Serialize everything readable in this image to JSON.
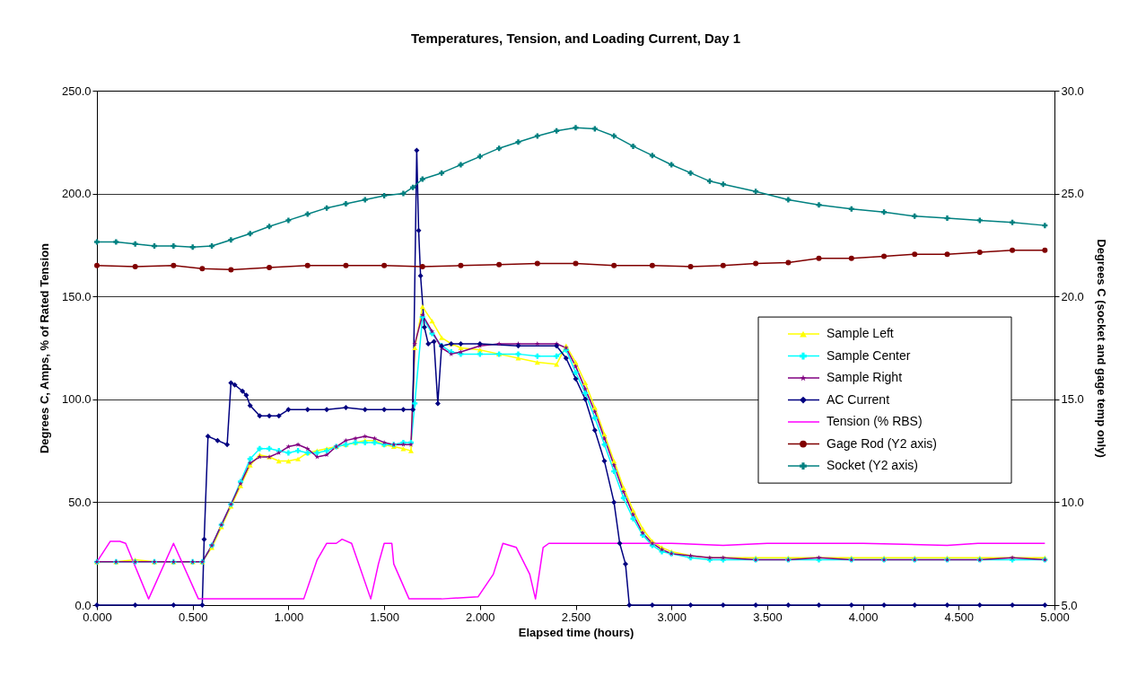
{
  "chart_data": {
    "type": "line",
    "title": "Temperatures, Tension, and Loading Current, Day 1",
    "xlabel": "Elapsed time (hours)",
    "ylabel": "Degrees C, Amps, % of Rated Tension",
    "y2label": "Degrees C (socket and gage temp only)",
    "xlim": [
      0,
      5
    ],
    "xticks": [
      {
        "value": 0,
        "label": "0.000"
      },
      {
        "value": 0.5,
        "label": "0.500"
      },
      {
        "value": 1,
        "label": "1.000"
      },
      {
        "value": 1.5,
        "label": "1.500"
      },
      {
        "value": 2,
        "label": "2.000"
      },
      {
        "value": 2.5,
        "label": "2.500"
      },
      {
        "value": 3,
        "label": "3.000"
      },
      {
        "value": 3.5,
        "label": "3.500"
      },
      {
        "value": 4,
        "label": "4.000"
      },
      {
        "value": 4.5,
        "label": "4.500"
      },
      {
        "value": 5,
        "label": "5.000"
      }
    ],
    "ylim": [
      0,
      250
    ],
    "yticks": [
      {
        "value": 0,
        "label": "0.0"
      },
      {
        "value": 50,
        "label": "50.0"
      },
      {
        "value": 100,
        "label": "100.0"
      },
      {
        "value": 150,
        "label": "150.0"
      },
      {
        "value": 200,
        "label": "200.0"
      },
      {
        "value": 250,
        "label": "250.0"
      }
    ],
    "y2lim": [
      5,
      30
    ],
    "y2ticks": [
      {
        "value": 5,
        "label": "5.0"
      },
      {
        "value": 10,
        "label": "10.0"
      },
      {
        "value": 15,
        "label": "15.0"
      },
      {
        "value": 20,
        "label": "20.0"
      },
      {
        "value": 25,
        "label": "25.0"
      },
      {
        "value": 30,
        "label": "30.0"
      }
    ],
    "grid": "y",
    "legend": "right",
    "series": [
      {
        "name": "Sample Left",
        "color": "#ffff00",
        "marker": "triangle",
        "x": [
          0,
          0.1,
          0.2,
          0.3,
          0.4,
          0.5,
          0.55,
          0.6,
          0.65,
          0.7,
          0.75,
          0.8,
          0.85,
          0.9,
          0.95,
          1.0,
          1.05,
          1.1,
          1.15,
          1.2,
          1.25,
          1.3,
          1.35,
          1.4,
          1.45,
          1.5,
          1.55,
          1.6,
          1.64,
          1.66,
          1.7,
          1.75,
          1.8,
          1.85,
          1.9,
          2.0,
          2.1,
          2.2,
          2.3,
          2.4,
          2.45,
          2.5,
          2.55,
          2.6,
          2.65,
          2.7,
          2.75,
          2.8,
          2.85,
          2.9,
          2.95,
          3.0,
          3.1,
          3.2,
          3.27,
          3.44,
          3.61,
          3.77,
          3.94,
          4.11,
          4.27,
          4.44,
          4.61,
          4.78,
          4.95
        ],
        "values": [
          21,
          21,
          22,
          21,
          21,
          21,
          21,
          28,
          38,
          48,
          58,
          68,
          73,
          72,
          70,
          70,
          71,
          74,
          75,
          76,
          77,
          78,
          79,
          80,
          80,
          78,
          77,
          76,
          75,
          125,
          145,
          138,
          130,
          127,
          125,
          124,
          122,
          120,
          118,
          117,
          126,
          118,
          108,
          96,
          83,
          70,
          57,
          46,
          37,
          31,
          28,
          26,
          24,
          23,
          23,
          23,
          23,
          23,
          23,
          23,
          23,
          23,
          23,
          23,
          23
        ]
      },
      {
        "name": "Sample Center",
        "color": "#00ffff",
        "marker": "cross",
        "x": [
          0,
          0.1,
          0.2,
          0.3,
          0.4,
          0.5,
          0.55,
          0.6,
          0.65,
          0.7,
          0.75,
          0.8,
          0.85,
          0.9,
          0.95,
          1.0,
          1.05,
          1.1,
          1.15,
          1.2,
          1.25,
          1.3,
          1.35,
          1.4,
          1.45,
          1.5,
          1.55,
          1.6,
          1.64,
          1.66,
          1.7,
          1.75,
          1.8,
          1.85,
          1.9,
          2.0,
          2.1,
          2.2,
          2.3,
          2.4,
          2.45,
          2.5,
          2.55,
          2.6,
          2.65,
          2.7,
          2.75,
          2.8,
          2.85,
          2.9,
          2.95,
          3.0,
          3.1,
          3.2,
          3.27,
          3.44,
          3.61,
          3.77,
          3.94,
          4.11,
          4.27,
          4.44,
          4.61,
          4.78,
          4.95
        ],
        "values": [
          21,
          21,
          21,
          21,
          21,
          21,
          21,
          29,
          39,
          49,
          60,
          71,
          76,
          76,
          75,
          74,
          75,
          74,
          74,
          75,
          77,
          78,
          79,
          79,
          79,
          78,
          78,
          79,
          79,
          98,
          140,
          132,
          126,
          123,
          122,
          122,
          122,
          122,
          121,
          121,
          124,
          113,
          103,
          91,
          78,
          65,
          52,
          42,
          34,
          29,
          26,
          25,
          23,
          22,
          22,
          22,
          22,
          22,
          22,
          22,
          22,
          22,
          22,
          22,
          22
        ]
      },
      {
        "name": "Sample Right",
        "color": "#800080",
        "marker": "star",
        "x": [
          0,
          0.1,
          0.2,
          0.3,
          0.4,
          0.5,
          0.55,
          0.6,
          0.65,
          0.7,
          0.75,
          0.8,
          0.85,
          0.9,
          0.95,
          1.0,
          1.05,
          1.1,
          1.15,
          1.2,
          1.25,
          1.3,
          1.35,
          1.4,
          1.45,
          1.5,
          1.55,
          1.6,
          1.64,
          1.66,
          1.7,
          1.75,
          1.8,
          1.85,
          1.9,
          2.0,
          2.1,
          2.2,
          2.3,
          2.4,
          2.45,
          2.5,
          2.55,
          2.6,
          2.65,
          2.7,
          2.75,
          2.8,
          2.85,
          2.9,
          2.95,
          3.0,
          3.1,
          3.2,
          3.27,
          3.44,
          3.61,
          3.77,
          3.94,
          4.11,
          4.27,
          4.44,
          4.61,
          4.78,
          4.95
        ],
        "values": [
          21,
          21,
          21,
          21,
          21,
          21,
          21,
          29,
          39,
          49,
          59,
          69,
          72,
          72,
          74,
          77,
          78,
          76,
          72,
          73,
          77,
          80,
          81,
          82,
          81,
          79,
          78,
          78,
          78,
          127,
          141,
          133,
          125,
          122,
          123,
          126,
          127,
          127,
          127,
          127,
          125,
          116,
          105,
          94,
          81,
          68,
          55,
          44,
          35,
          30,
          27,
          25,
          24,
          23,
          23,
          22,
          22,
          23,
          22,
          22,
          22,
          22,
          22,
          23,
          22
        ]
      },
      {
        "name": "AC Current",
        "color": "#000080",
        "marker": "diamond",
        "x": [
          0,
          0.2,
          0.4,
          0.55,
          0.56,
          0.58,
          0.63,
          0.68,
          0.7,
          0.72,
          0.76,
          0.78,
          0.8,
          0.85,
          0.9,
          0.95,
          1.0,
          1.1,
          1.2,
          1.3,
          1.4,
          1.5,
          1.6,
          1.65,
          1.67,
          1.68,
          1.69,
          1.71,
          1.73,
          1.76,
          1.78,
          1.8,
          1.85,
          1.9,
          2.0,
          2.2,
          2.4,
          2.45,
          2.5,
          2.55,
          2.6,
          2.65,
          2.7,
          2.73,
          2.76,
          2.78,
          2.9,
          3.1,
          3.27,
          3.44,
          3.61,
          3.77,
          3.94,
          4.11,
          4.27,
          4.44,
          4.61,
          4.78,
          4.95
        ],
        "values": [
          0,
          0,
          0,
          0,
          32,
          82,
          80,
          78,
          108,
          107,
          104,
          102,
          97,
          92,
          92,
          92,
          95,
          95,
          95,
          96,
          95,
          95,
          95,
          95,
          221,
          182,
          160,
          135,
          127,
          128,
          98,
          126,
          127,
          127,
          127,
          126,
          126,
          120,
          110,
          100,
          85,
          70,
          50,
          30,
          20,
          0,
          0,
          0,
          0,
          0,
          0,
          0,
          0,
          0,
          0,
          0,
          0,
          0,
          0
        ]
      },
      {
        "name": "Tension (% RBS)",
        "color": "#ff00ff",
        "marker": "none",
        "x": [
          0,
          0.07,
          0.12,
          0.15,
          0.27,
          0.4,
          0.53,
          0.55,
          0.8,
          1.08,
          1.15,
          1.2,
          1.25,
          1.28,
          1.33,
          1.43,
          1.47,
          1.5,
          1.54,
          1.55,
          1.63,
          1.8,
          1.99,
          2.07,
          2.12,
          2.19,
          2.26,
          2.29,
          2.33,
          2.36,
          2.6,
          3.0,
          3.27,
          3.5,
          4.0,
          4.44,
          4.6,
          4.95
        ],
        "values": [
          21,
          31,
          31,
          30,
          3,
          30,
          3,
          3,
          3,
          3,
          22,
          30,
          30,
          32,
          30,
          3,
          20,
          30,
          30,
          20,
          3,
          3,
          4,
          15,
          30,
          28,
          15,
          3,
          28,
          30,
          30,
          30,
          29,
          30,
          30,
          29,
          30,
          30
        ]
      },
      {
        "name": "Gage Rod (Y2 axis)",
        "color": "#800000",
        "marker": "circle",
        "axis": "y2",
        "x": [
          0,
          0.2,
          0.4,
          0.55,
          0.7,
          0.9,
          1.1,
          1.3,
          1.5,
          1.7,
          1.9,
          2.1,
          2.3,
          2.5,
          2.7,
          2.9,
          3.1,
          3.27,
          3.44,
          3.61,
          3.77,
          3.94,
          4.11,
          4.27,
          4.44,
          4.61,
          4.78,
          4.95
        ],
        "values": [
          21.5,
          21.45,
          21.5,
          21.35,
          21.3,
          21.4,
          21.5,
          21.5,
          21.5,
          21.45,
          21.5,
          21.55,
          21.6,
          21.6,
          21.5,
          21.5,
          21.45,
          21.5,
          21.6,
          21.65,
          21.85,
          21.85,
          21.95,
          22.05,
          22.05,
          22.15,
          22.25,
          22.25
        ]
      },
      {
        "name": "Socket (Y2 axis)",
        "color": "#008080",
        "marker": "cross",
        "axis": "y2",
        "x": [
          0,
          0.1,
          0.2,
          0.3,
          0.4,
          0.5,
          0.6,
          0.7,
          0.8,
          0.9,
          1.0,
          1.1,
          1.2,
          1.3,
          1.4,
          1.5,
          1.6,
          1.65,
          1.7,
          1.8,
          1.9,
          2.0,
          2.1,
          2.2,
          2.3,
          2.4,
          2.5,
          2.6,
          2.7,
          2.8,
          2.9,
          3.0,
          3.1,
          3.2,
          3.27,
          3.44,
          3.61,
          3.77,
          3.94,
          4.11,
          4.27,
          4.44,
          4.61,
          4.78,
          4.95
        ],
        "values": [
          22.65,
          22.65,
          22.55,
          22.45,
          22.45,
          22.4,
          22.45,
          22.75,
          23.05,
          23.4,
          23.7,
          24.0,
          24.3,
          24.5,
          24.7,
          24.9,
          25.0,
          25.3,
          25.7,
          26.0,
          26.4,
          26.8,
          27.2,
          27.5,
          27.8,
          28.05,
          28.2,
          28.15,
          27.8,
          27.3,
          26.85,
          26.4,
          26.0,
          25.6,
          25.45,
          25.1,
          24.7,
          24.45,
          24.25,
          24.1,
          23.9,
          23.8,
          23.7,
          23.6,
          23.45
        ]
      }
    ]
  }
}
